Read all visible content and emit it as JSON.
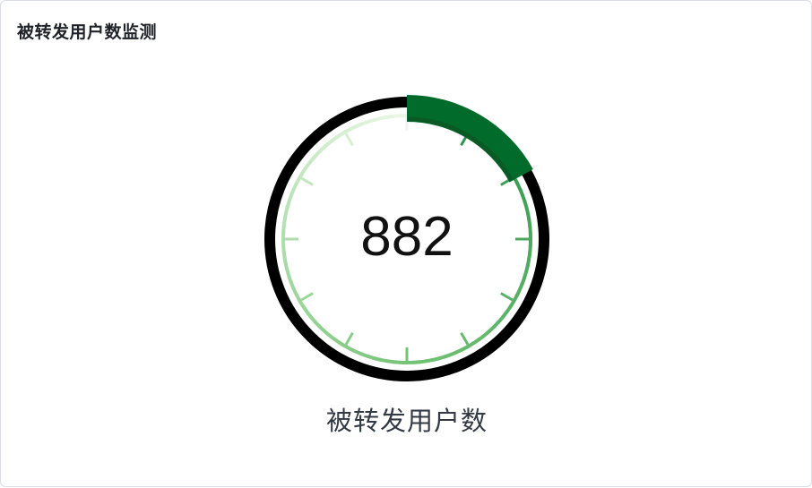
{
  "card": {
    "title": "被转发用户数监测"
  },
  "chart_data": {
    "type": "gauge",
    "value": 882,
    "value_label": "882",
    "caption": "被转发用户数",
    "progress_color": "#006b2b",
    "ring_color": "#000000",
    "ticks_total": 12,
    "gradient_light": "#eaf7e4",
    "gradient_mid": "#74c476",
    "gradient_dark": "#238b45"
  }
}
